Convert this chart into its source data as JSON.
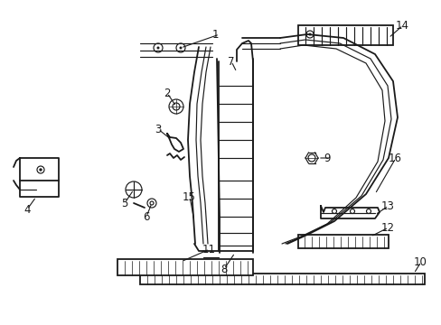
{
  "background_color": "#ffffff",
  "line_color": "#1a1a1a",
  "figsize": [
    4.89,
    3.6
  ],
  "dpi": 100,
  "label_fontsize": 8.5
}
